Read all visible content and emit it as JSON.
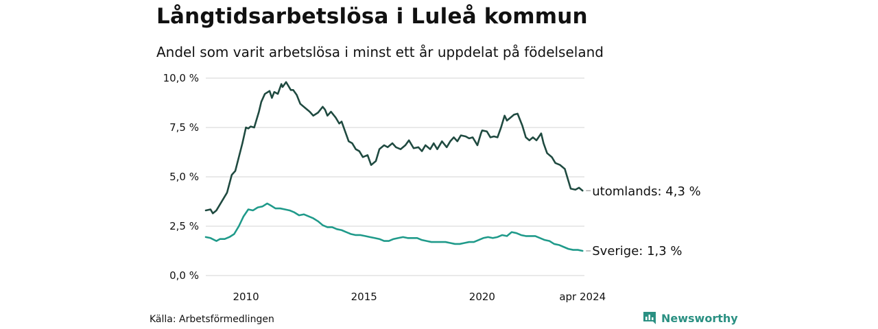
{
  "title": "Långtidsarbetslösa i Luleå kommun",
  "subtitle": "Andel som varit arbetslösa i minst ett år uppdelat på födelseland",
  "source": "Källa: Arbetsförmedlingen",
  "brand": "Newsworthy",
  "colors": {
    "utomlands": "#1f4a40",
    "sverige": "#1f9a8a",
    "grid": "#dcdcdc",
    "brand": "#2a9082"
  },
  "chart_data": {
    "type": "line",
    "title": "Långtidsarbetslösa i Luleå kommun",
    "xlabel": "",
    "ylabel": "",
    "xlim": [
      2008.3,
      2024.33
    ],
    "ylim": [
      0,
      10
    ],
    "y_ticks": [
      0,
      2.5,
      5,
      7.5,
      10
    ],
    "y_tick_labels": [
      "0,0 %",
      "2,5 %",
      "5,0 %",
      "7,5 %",
      "10,0 %"
    ],
    "x_ticks": [
      2010,
      2015,
      2020,
      2024.25
    ],
    "x_tick_labels": [
      "2010",
      "2015",
      "2020",
      "apr 2024"
    ],
    "grid": true,
    "series": [
      {
        "name": "utomlands",
        "end_label": "utomlands: 4,3 %",
        "x": [
          2008.3,
          2008.5,
          2008.6,
          2008.75,
          2008.9,
          2009.0,
          2009.2,
          2009.4,
          2009.55,
          2009.7,
          2009.85,
          2010.0,
          2010.1,
          2010.2,
          2010.35,
          2010.55,
          2010.65,
          2010.8,
          2011.0,
          2011.1,
          2011.2,
          2011.35,
          2011.5,
          2011.55,
          2011.7,
          2011.8,
          2011.9,
          2012.0,
          2012.15,
          2012.3,
          2012.5,
          2012.7,
          2012.85,
          2013.05,
          2013.25,
          2013.35,
          2013.45,
          2013.6,
          2013.8,
          2013.95,
          2014.05,
          2014.2,
          2014.35,
          2014.5,
          2014.65,
          2014.8,
          2014.95,
          2015.15,
          2015.3,
          2015.5,
          2015.65,
          2015.85,
          2016.0,
          2016.2,
          2016.35,
          2016.55,
          2016.75,
          2016.9,
          2017.1,
          2017.3,
          2017.45,
          2017.6,
          2017.8,
          2017.95,
          2018.1,
          2018.3,
          2018.5,
          2018.65,
          2018.8,
          2018.95,
          2019.1,
          2019.3,
          2019.45,
          2019.6,
          2019.8,
          2019.95,
          2020.0,
          2020.2,
          2020.35,
          2020.5,
          2020.65,
          2020.8,
          2020.95,
          2021.05,
          2021.2,
          2021.35,
          2021.5,
          2021.7,
          2021.85,
          2022.0,
          2022.15,
          2022.3,
          2022.5,
          2022.6,
          2022.75,
          2022.95,
          2023.1,
          2023.3,
          2023.5,
          2023.6,
          2023.75,
          2023.95,
          2024.1,
          2024.25
        ],
        "values": [
          3.3,
          3.35,
          3.15,
          3.3,
          3.6,
          3.8,
          4.2,
          5.1,
          5.3,
          6.0,
          6.7,
          7.5,
          7.45,
          7.55,
          7.5,
          8.3,
          8.8,
          9.2,
          9.35,
          9.0,
          9.3,
          9.2,
          9.7,
          9.55,
          9.8,
          9.6,
          9.4,
          9.4,
          9.15,
          8.7,
          8.5,
          8.3,
          8.1,
          8.25,
          8.55,
          8.4,
          8.1,
          8.3,
          8.0,
          7.7,
          7.8,
          7.3,
          6.8,
          6.7,
          6.4,
          6.3,
          6.0,
          6.1,
          5.6,
          5.8,
          6.4,
          6.6,
          6.5,
          6.7,
          6.5,
          6.4,
          6.6,
          6.85,
          6.45,
          6.5,
          6.3,
          6.6,
          6.4,
          6.7,
          6.4,
          6.8,
          6.5,
          6.8,
          7.0,
          6.8,
          7.1,
          7.05,
          6.95,
          7.0,
          6.6,
          7.2,
          7.35,
          7.3,
          7.0,
          7.05,
          7.0,
          7.5,
          8.1,
          7.85,
          8.0,
          8.15,
          8.2,
          7.6,
          7.0,
          6.85,
          7.0,
          6.85,
          7.2,
          6.7,
          6.2,
          6.0,
          5.7,
          5.6,
          5.4,
          5.0,
          4.4,
          4.35,
          4.45,
          4.3
        ]
      },
      {
        "name": "Sverige",
        "end_label": "Sverige: 1,3 %",
        "x": [
          2008.3,
          2008.5,
          2008.75,
          2008.9,
          2009.1,
          2009.3,
          2009.5,
          2009.7,
          2009.9,
          2010.1,
          2010.3,
          2010.5,
          2010.7,
          2010.9,
          2011.05,
          2011.25,
          2011.45,
          2011.65,
          2011.85,
          2012.05,
          2012.25,
          2012.45,
          2012.65,
          2012.85,
          2013.05,
          2013.25,
          2013.45,
          2013.65,
          2013.85,
          2014.05,
          2014.25,
          2014.45,
          2014.65,
          2014.85,
          2015.05,
          2015.25,
          2015.45,
          2015.65,
          2015.85,
          2016.05,
          2016.25,
          2016.45,
          2016.65,
          2016.85,
          2017.05,
          2017.25,
          2017.45,
          2017.65,
          2017.85,
          2018.05,
          2018.25,
          2018.45,
          2018.65,
          2018.85,
          2019.05,
          2019.25,
          2019.45,
          2019.65,
          2019.85,
          2020.05,
          2020.25,
          2020.45,
          2020.65,
          2020.85,
          2021.05,
          2021.25,
          2021.45,
          2021.65,
          2021.85,
          2022.05,
          2022.25,
          2022.45,
          2022.65,
          2022.85,
          2023.05,
          2023.25,
          2023.45,
          2023.65,
          2023.85,
          2024.05,
          2024.25
        ],
        "values": [
          1.95,
          1.9,
          1.75,
          1.85,
          1.85,
          1.95,
          2.1,
          2.5,
          3.0,
          3.35,
          3.3,
          3.45,
          3.5,
          3.65,
          3.55,
          3.4,
          3.4,
          3.35,
          3.3,
          3.2,
          3.05,
          3.1,
          3.0,
          2.9,
          2.75,
          2.55,
          2.45,
          2.45,
          2.35,
          2.3,
          2.2,
          2.1,
          2.05,
          2.05,
          2.0,
          1.95,
          1.9,
          1.85,
          1.75,
          1.75,
          1.85,
          1.9,
          1.95,
          1.9,
          1.9,
          1.9,
          1.8,
          1.75,
          1.7,
          1.7,
          1.7,
          1.7,
          1.65,
          1.6,
          1.6,
          1.65,
          1.7,
          1.7,
          1.8,
          1.9,
          1.95,
          1.9,
          1.95,
          2.05,
          2.0,
          2.2,
          2.15,
          2.05,
          2.0,
          2.0,
          2.0,
          1.9,
          1.8,
          1.75,
          1.6,
          1.55,
          1.45,
          1.35,
          1.3,
          1.3,
          1.25
        ]
      }
    ]
  }
}
